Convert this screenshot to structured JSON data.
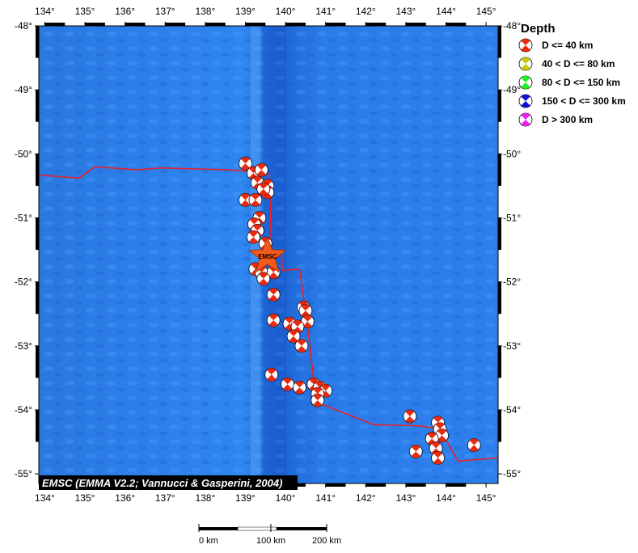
{
  "map": {
    "lon_range": [
      133.85,
      145.3
    ],
    "lat_range": [
      -55.15,
      -48.0
    ],
    "lon_ticks": [
      "134°",
      "135°",
      "136°",
      "137°",
      "138°",
      "139°",
      "140°",
      "141°",
      "142°",
      "143°",
      "144°",
      "145°"
    ],
    "lon_tick_values": [
      134,
      135,
      136,
      137,
      138,
      139,
      140,
      141,
      142,
      143,
      144,
      145
    ],
    "lat_tick_values": [
      -48,
      -49,
      -50,
      -51,
      -52,
      -53,
      -54,
      -55
    ],
    "lat_ticks_left": [
      "-48°",
      "-49°",
      "-50°",
      "-51°",
      "-52°",
      "-53°",
      "-54°",
      "-55°"
    ],
    "lat_ticks_right": [
      "-48°",
      "-49°",
      "-50°",
      "-51°",
      "-52°",
      "-53°",
      "-54°",
      "-55°"
    ],
    "ocean_color": "#2a7ee6",
    "plate_boundary_color": "#e8202a",
    "plate_boundary": [
      [
        133.85,
        -50.33
      ],
      [
        134.85,
        -50.38
      ],
      [
        135.25,
        -50.2
      ],
      [
        136.3,
        -50.25
      ],
      [
        136.9,
        -50.22
      ],
      [
        138.6,
        -50.25
      ],
      [
        139.0,
        -50.27
      ],
      [
        139.6,
        -50.32
      ],
      [
        139.65,
        -51.55
      ],
      [
        139.9,
        -51.6
      ],
      [
        139.92,
        -51.82
      ],
      [
        140.35,
        -51.8
      ],
      [
        140.55,
        -52.7
      ],
      [
        140.75,
        -53.8
      ],
      [
        140.85,
        -53.9
      ],
      [
        142.2,
        -54.23
      ],
      [
        143.35,
        -54.25
      ],
      [
        143.85,
        -54.3
      ],
      [
        144.3,
        -54.8
      ],
      [
        145.3,
        -54.75
      ]
    ],
    "ridge_center_lon": 139.55,
    "credit": "EMSC (EMMA V2.2; Vannucci & Gasperini, 2004)",
    "epicenter": {
      "lon": 139.55,
      "lat": -51.6,
      "label": "EMSC",
      "color": "#f05a1a"
    },
    "mechanisms": [
      {
        "lon": 139.0,
        "lat": -50.15
      },
      {
        "lon": 139.2,
        "lat": -50.3
      },
      {
        "lon": 139.4,
        "lat": -50.25
      },
      {
        "lon": 139.3,
        "lat": -50.45
      },
      {
        "lon": 139.55,
        "lat": -50.5
      },
      {
        "lon": 139.55,
        "lat": -50.6
      },
      {
        "lon": 139.45,
        "lat": -50.55
      },
      {
        "lon": 139.0,
        "lat": -50.72
      },
      {
        "lon": 139.25,
        "lat": -50.72
      },
      {
        "lon": 139.35,
        "lat": -51.0
      },
      {
        "lon": 139.22,
        "lat": -51.1
      },
      {
        "lon": 139.3,
        "lat": -51.2
      },
      {
        "lon": 139.2,
        "lat": -51.3
      },
      {
        "lon": 139.5,
        "lat": -51.4
      },
      {
        "lon": 139.25,
        "lat": -51.8
      },
      {
        "lon": 139.4,
        "lat": -51.85
      },
      {
        "lon": 139.7,
        "lat": -51.85
      },
      {
        "lon": 139.45,
        "lat": -51.95
      },
      {
        "lon": 139.7,
        "lat": -52.2
      },
      {
        "lon": 140.45,
        "lat": -52.4
      },
      {
        "lon": 140.5,
        "lat": -52.45
      },
      {
        "lon": 139.7,
        "lat": -52.6
      },
      {
        "lon": 140.55,
        "lat": -52.62
      },
      {
        "lon": 140.1,
        "lat": -52.65
      },
      {
        "lon": 140.3,
        "lat": -52.7
      },
      {
        "lon": 140.2,
        "lat": -52.85
      },
      {
        "lon": 140.4,
        "lat": -53.0
      },
      {
        "lon": 139.65,
        "lat": -53.45
      },
      {
        "lon": 140.05,
        "lat": -53.6
      },
      {
        "lon": 140.35,
        "lat": -53.65
      },
      {
        "lon": 140.7,
        "lat": -53.6
      },
      {
        "lon": 140.85,
        "lat": -53.65
      },
      {
        "lon": 141.0,
        "lat": -53.7
      },
      {
        "lon": 140.8,
        "lat": -53.75
      },
      {
        "lon": 140.8,
        "lat": -53.85
      },
      {
        "lon": 143.1,
        "lat": -54.1
      },
      {
        "lon": 143.8,
        "lat": -54.2
      },
      {
        "lon": 143.85,
        "lat": -54.3
      },
      {
        "lon": 143.9,
        "lat": -54.4
      },
      {
        "lon": 143.65,
        "lat": -54.45
      },
      {
        "lon": 143.75,
        "lat": -54.6
      },
      {
        "lon": 143.25,
        "lat": -54.65
      },
      {
        "lon": 143.8,
        "lat": -54.75
      },
      {
        "lon": 144.7,
        "lat": -54.55
      }
    ]
  },
  "legend": {
    "title": "Depth",
    "items": [
      {
        "label": "D <= 40 km",
        "color": "#e82a10"
      },
      {
        "label": "40 < D <= 80 km",
        "color": "#c8c810"
      },
      {
        "label": "80 < D <= 150 km",
        "color": "#20f020"
      },
      {
        "label": "150 < D <= 300 km",
        "color": "#1010d0"
      },
      {
        "label": "D > 300 km",
        "color": "#f020f0"
      }
    ]
  },
  "scale_bar": {
    "labels": [
      "0 km",
      "100 km",
      "200 km"
    ]
  }
}
